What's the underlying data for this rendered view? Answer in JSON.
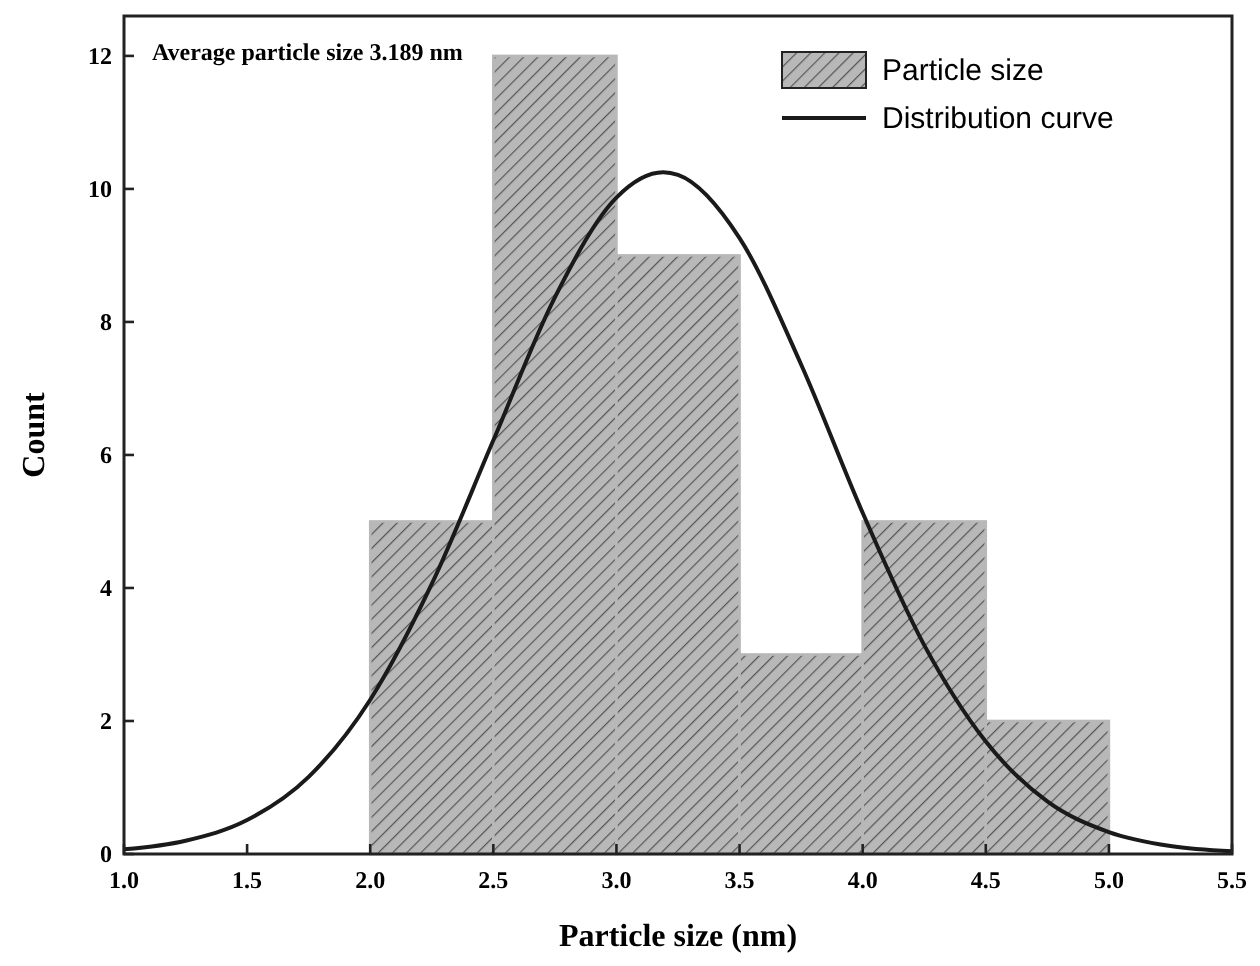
{
  "chart_data": {
    "type": "histogram",
    "xlabel": "Particle size (nm)",
    "ylabel": "Count",
    "annotations": [
      "Average particle size 3.189 nm"
    ],
    "bins": [
      2.0,
      2.5,
      3.0,
      3.5,
      4.0,
      4.5,
      5.0
    ],
    "series": [
      {
        "name": "Particle size",
        "color": "#b8b8b8",
        "values": [
          5,
          12,
          9,
          3,
          5,
          2
        ]
      },
      {
        "type": "line",
        "name": "Distribution curve",
        "color": "#1a1a1a",
        "x": [
          1.0,
          1.25,
          1.5,
          1.75,
          2.0,
          2.25,
          2.5,
          2.75,
          3.0,
          3.19,
          3.25,
          3.5,
          3.75,
          4.0,
          4.25,
          4.5,
          4.75,
          5.0,
          5.25,
          5.5
        ],
        "values": [
          0.07,
          0.2,
          0.51,
          1.16,
          2.32,
          4.06,
          6.22,
          8.37,
          9.87,
          10.25,
          10.21,
          9.26,
          7.36,
          5.13,
          3.14,
          1.69,
          0.79,
          0.33,
          0.12,
          0.04
        ]
      }
    ],
    "xlim": [
      1.0,
      5.5
    ],
    "xticks": [
      {
        "value": 1,
        "label": "1.0"
      },
      {
        "value": 1.5,
        "label": "1.5"
      },
      {
        "value": 2,
        "label": "2.0"
      },
      {
        "value": 2.5,
        "label": "2.5"
      },
      {
        "value": 3,
        "label": "3.0"
      },
      {
        "value": 3.5,
        "label": "3.5"
      },
      {
        "value": 4,
        "label": "4.0"
      },
      {
        "value": 4.5,
        "label": "4.5"
      },
      {
        "value": 5,
        "label": "5.0"
      },
      {
        "value": 5.5,
        "label": "5.5"
      }
    ],
    "ylim": [
      0,
      12.6
    ],
    "yticks": [
      0,
      2,
      4,
      6,
      8,
      10,
      12
    ],
    "legend": "top right",
    "grid": false,
    "line_style": "solid"
  }
}
